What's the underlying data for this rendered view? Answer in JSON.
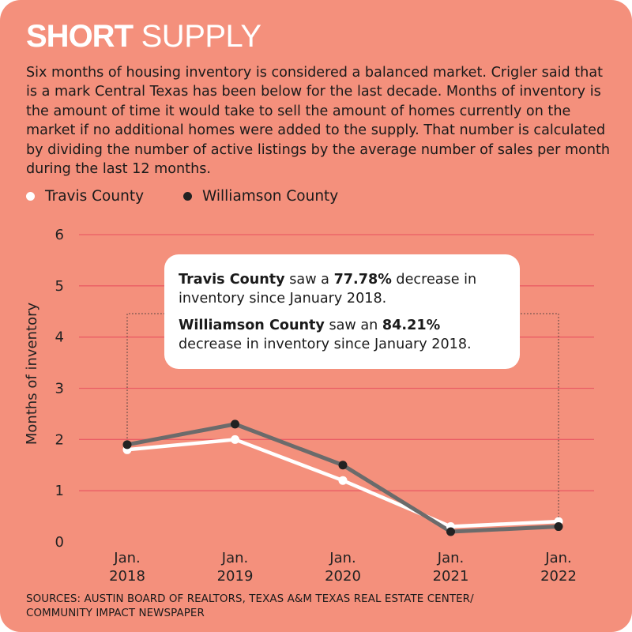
{
  "title": {
    "bold": "SHORT",
    "regular": "SUPPLY"
  },
  "description": "Six months of housing inventory is considered a balanced market. Crigler said that is a mark Central Texas has been below for the last decade. Months of inventory is the amount of time it would take to sell the amount of homes currently on the market if no additional homes were added to the supply. That number is calculated by dividing the number of active listings by the average number of sales per month during the last 12 months.",
  "callout": {
    "p1_county": "Travis County",
    "p1_mid": " saw a ",
    "p1_pct": "77.78%",
    "p1_rest": " decrease in inventory since January 2018.",
    "p2_county": "Williamson County",
    "p2_mid": " saw an ",
    "p2_pct": "84.21%",
    "p2_rest": " decrease in inventory since January 2018."
  },
  "sources": [
    "SOURCES: AUSTIN BOARD OF REALTORS, TEXAS A&M TEXAS REAL ESTATE CENTER/",
    "COMMUNITY IMPACT NEWSPAPER"
  ],
  "colors": {
    "background": "#f4907c",
    "gridline": "#ea5d64",
    "travis": "#ffffff",
    "williamson": "#6b6b6b",
    "williamson_dot": "#222222"
  },
  "chart_data": {
    "type": "line",
    "ylabel": "Months of inventory",
    "xlabel": "",
    "ylim": [
      0,
      6
    ],
    "yticks": [
      0,
      1,
      2,
      3,
      4,
      5,
      6
    ],
    "grid": true,
    "legend_position": "top-left",
    "categories": [
      [
        "Jan.",
        "2018"
      ],
      [
        "Jan.",
        "2019"
      ],
      [
        "Jan.",
        "2020"
      ],
      [
        "Jan.",
        "2021"
      ],
      [
        "Jan.",
        "2022"
      ]
    ],
    "series": [
      {
        "name": "Travis County",
        "values": [
          1.8,
          2.0,
          1.2,
          0.3,
          0.4
        ]
      },
      {
        "name": "Williamson County",
        "values": [
          1.9,
          2.3,
          1.5,
          0.2,
          0.3
        ]
      }
    ]
  }
}
